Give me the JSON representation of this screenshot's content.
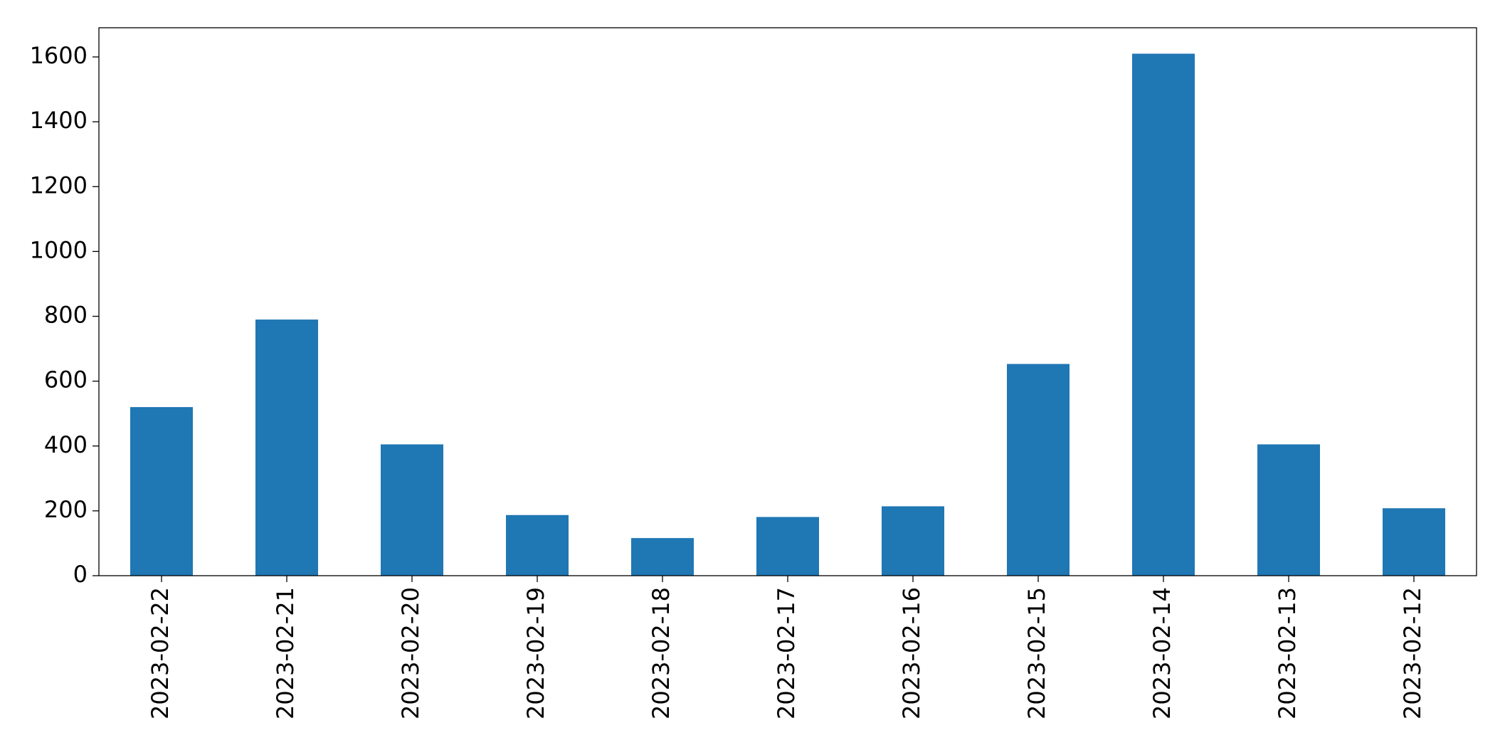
{
  "chart_data": {
    "type": "bar",
    "categories": [
      "2023-02-22",
      "2023-02-21",
      "2023-02-20",
      "2023-02-19",
      "2023-02-18",
      "2023-02-17",
      "2023-02-16",
      "2023-02-15",
      "2023-02-14",
      "2023-02-13",
      "2023-02-12"
    ],
    "values": [
      520,
      790,
      405,
      187,
      116,
      181,
      214,
      653,
      1610,
      405,
      208
    ],
    "color": "#1f77b4",
    "ylim": [
      0,
      1690
    ],
    "yticks": [
      0,
      200,
      400,
      600,
      800,
      1000,
      1200,
      1400,
      1600
    ],
    "grid": false
  }
}
